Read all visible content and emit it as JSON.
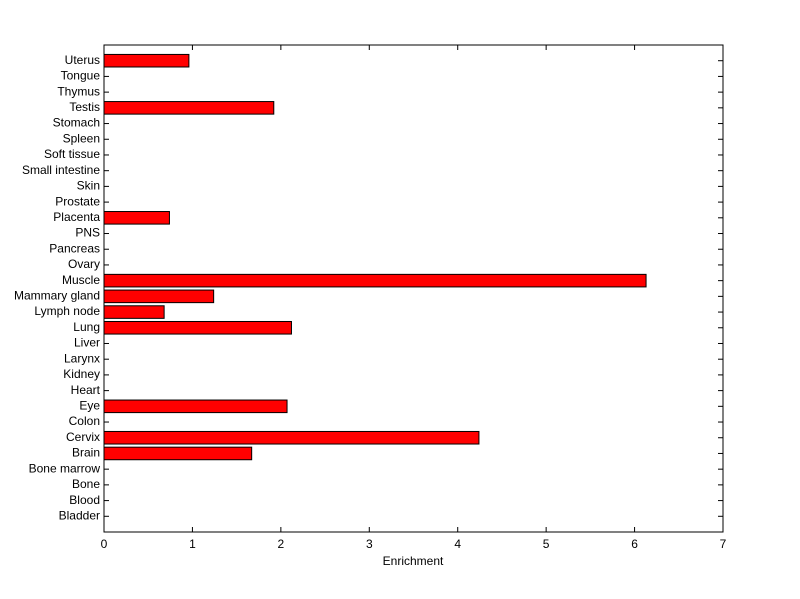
{
  "chart_data": {
    "type": "barh",
    "xlabel": "Enrichment",
    "categories": [
      "Bladder",
      "Blood",
      "Bone",
      "Bone marrow",
      "Brain",
      "Cervix",
      "Colon",
      "Eye",
      "Heart",
      "Kidney",
      "Larynx",
      "Liver",
      "Lung",
      "Lymph node",
      "Mammary gland",
      "Muscle",
      "Ovary",
      "Pancreas",
      "PNS",
      "Placenta",
      "Prostate",
      "Skin",
      "Small intestine",
      "Soft tissue",
      "Spleen",
      "Stomach",
      "Testis",
      "Thymus",
      "Tongue",
      "Uterus"
    ],
    "values": [
      0,
      0,
      0,
      0,
      1.67,
      4.24,
      0,
      2.07,
      0,
      0,
      0,
      0,
      2.12,
      0.68,
      1.24,
      6.13,
      0,
      0,
      0,
      0.74,
      0,
      0,
      0,
      0,
      0,
      0,
      1.92,
      0,
      0,
      0.96
    ],
    "color": "#ff0000",
    "xlim": [
      0,
      7
    ],
    "xticks": [
      0,
      1,
      2,
      3,
      4,
      5,
      6,
      7
    ]
  }
}
